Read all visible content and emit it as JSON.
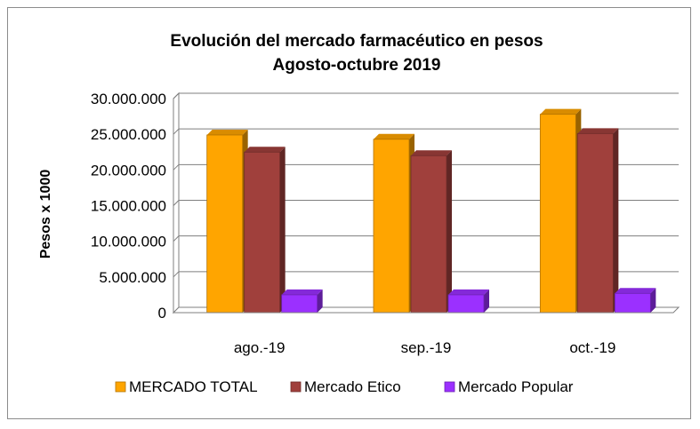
{
  "chart_data": {
    "type": "bar",
    "title": "Evolución del mercado farmacéutico en pesos",
    "subtitle": "Agosto-octubre 2019",
    "xlabel": "",
    "ylabel": "Pesos x 1000",
    "categories": [
      "ago.-19",
      "sep.-19",
      "oct.-19"
    ],
    "ylim": [
      0,
      30000000
    ],
    "yticks": [
      0,
      5000000,
      10000000,
      15000000,
      20000000,
      25000000,
      30000000
    ],
    "ytick_labels": [
      "0",
      "5.000.000",
      "10.000.000",
      "15.000.000",
      "20.000.000",
      "25.000.000",
      "30.000.000"
    ],
    "grid": true,
    "legend_position": "bottom",
    "series": [
      {
        "name": "MERCADO TOTAL",
        "color": "#FFA500",
        "values": [
          24900000,
          24300000,
          27800000
        ]
      },
      {
        "name": "Mercado Etico",
        "color": "#A0403C",
        "values": [
          22500000,
          22000000,
          25100000
        ]
      },
      {
        "name": "Mercado Popular",
        "color": "#9B30FF",
        "values": [
          2500000,
          2500000,
          2700000
        ]
      }
    ]
  }
}
